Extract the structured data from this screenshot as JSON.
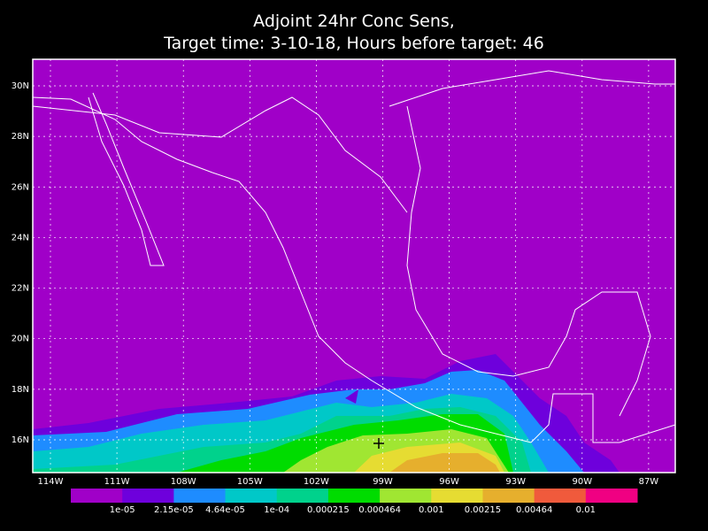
{
  "title": {
    "line1": "Adjoint 24hr Conc Sens,",
    "line2": "Target time: 3-10-18, Hours before target: 46"
  },
  "map": {
    "lat_labels": [
      "30N",
      "28N",
      "26N",
      "24N",
      "22N",
      "20N",
      "18N",
      "16N"
    ],
    "lon_labels": [
      "114W",
      "111W",
      "108W",
      "105W",
      "102W",
      "99W",
      "96W",
      "93W",
      "90W",
      "87W"
    ]
  },
  "colorbar": {
    "colors": [
      "#a000c8",
      "#6e00dc",
      "#1e8cff",
      "#00c8c8",
      "#00d28c",
      "#00dc00",
      "#a0e632",
      "#e6dc32",
      "#e6af2d",
      "#f05a3c",
      "#f00082"
    ],
    "labels": [
      "1e-05",
      "2.15e-05",
      "4.64e-05",
      "1e-04",
      "0.000215",
      "0.000464",
      "0.001",
      "0.00215",
      "0.00464",
      "0.01"
    ]
  }
}
